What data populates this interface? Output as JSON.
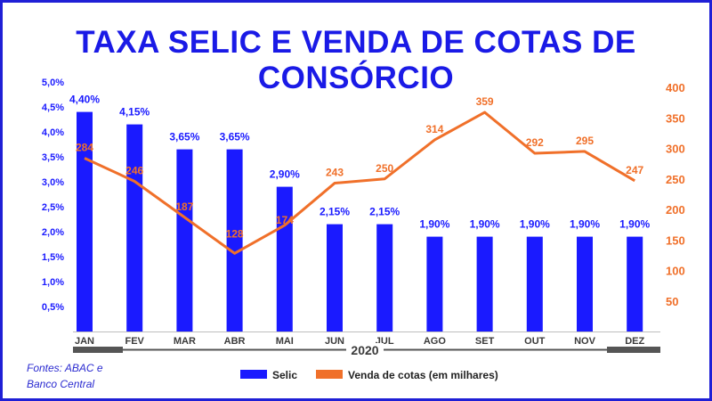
{
  "title": "TAXA SELIC E VENDA DE COTAS DE CONSÓRCIO",
  "source_line1": "Fontes: ABAC e",
  "source_line2": "Banco Central",
  "colors": {
    "selic": "#1a1aff",
    "cotas": "#f0702a",
    "title": "#1a1ae6",
    "frame": "#1f1fd6"
  },
  "chart_data": {
    "type": "bar",
    "title": "TAXA SELIC E VENDA DE COTAS DE CONSÓRCIO",
    "year_label": "2020",
    "categories": [
      "JAN",
      "FEV",
      "MAR",
      "ABR",
      "MAI",
      "JUN",
      "JUL",
      "AGO",
      "SET",
      "OUT",
      "NOV",
      "DEZ"
    ],
    "series": [
      {
        "name": "Selic",
        "type": "bar",
        "axis": "left",
        "values": [
          4.4,
          4.15,
          3.65,
          3.65,
          2.9,
          2.15,
          2.15,
          1.9,
          1.9,
          1.9,
          1.9,
          1.9
        ],
        "labels": [
          "4,40%",
          "4,15%",
          "3,65%",
          "3,65%",
          "2,90%",
          "2,15%",
          "2,15%",
          "1,90%",
          "1,90%",
          "1,90%",
          "1,90%",
          "1,90%"
        ]
      },
      {
        "name": "Venda de cotas (em milhares)",
        "type": "line",
        "axis": "right",
        "values": [
          284,
          246,
          187,
          128,
          174,
          243,
          250,
          314,
          359,
          292,
          295,
          247
        ],
        "labels": [
          "284",
          "246",
          "187",
          "128",
          "174",
          "243",
          "250",
          "314",
          "359",
          "292",
          "295",
          "247"
        ]
      }
    ],
    "y_left": {
      "ylim": [
        0,
        5
      ],
      "ticks": [
        "0,5%",
        "1,0%",
        "1,5%",
        "2,0%",
        "2,5%",
        "3,0%",
        "3,5%",
        "4,0%",
        "4,5%",
        "5,0%"
      ]
    },
    "y_right": {
      "ylim": [
        0,
        400
      ],
      "ticks": [
        "50",
        "100",
        "150",
        "200",
        "250",
        "300",
        "350",
        "400"
      ]
    },
    "legend": {
      "position": "bottom"
    },
    "grid": false
  }
}
